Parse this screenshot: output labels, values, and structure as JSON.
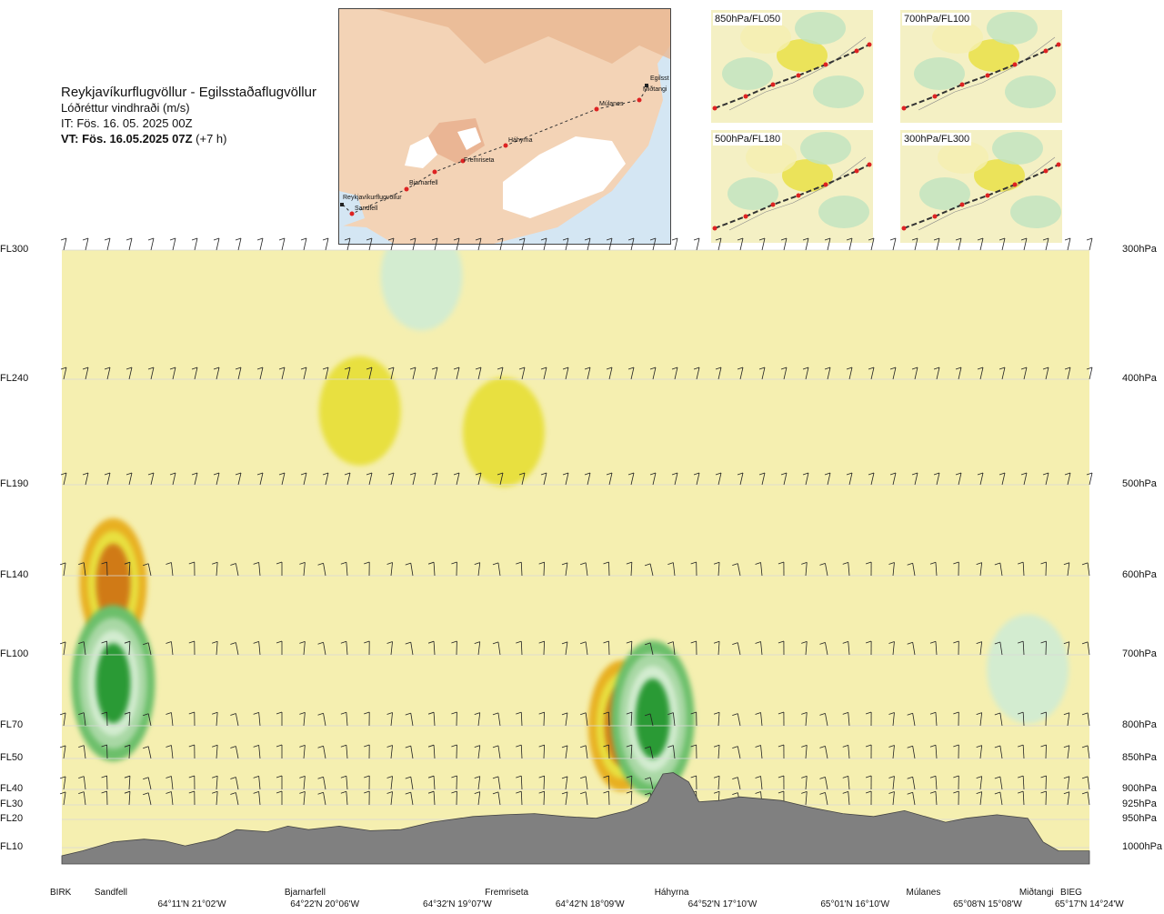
{
  "title": {
    "route": "Reykjavíkurflugvöllur - Egilsstaðaflugvöllur",
    "parameter": "Lóðréttur vindhraði (m/s)",
    "issue": "IT: Fös. 16. 05. 2025 00Z",
    "valid": "VT: Fös. 16.05.2025 07Z",
    "valid_offset": "(+7 h)"
  },
  "map": {
    "route_points": [
      "Reykjavíkurflugvöllur",
      "Sandfell",
      "Bjarnarfell",
      "Fremriseta",
      "Háhyrna",
      "Múlanes",
      "Miðtangi",
      "Egilsst"
    ]
  },
  "thumbnails": [
    {
      "label": "850hPa/FL050"
    },
    {
      "label": "700hPa/FL100"
    },
    {
      "label": "500hPa/FL180"
    },
    {
      "label": "300hPa/FL300"
    }
  ],
  "colors": {
    "pale_yellow": "#f5efb0",
    "yellow": "#e8e040",
    "gold": "#e8b020",
    "orange": "#d07a18",
    "pale_green": "#d3ecd0",
    "light_green": "#a9d8a5",
    "mid_green": "#6cbf6a",
    "dark_green": "#2a9a36",
    "terrain": "#808080"
  },
  "chart_data": {
    "type": "cross-section",
    "title": "Lóðréttur vindhraði (m/s)",
    "left_axis_labels": [
      {
        "label": "FL300",
        "pressure_hpa": 300
      },
      {
        "label": "FL240",
        "pressure_hpa": 400
      },
      {
        "label": "FL190",
        "pressure_hpa": 500
      },
      {
        "label": "FL140",
        "pressure_hpa": 600
      },
      {
        "label": "FL100",
        "pressure_hpa": 700
      },
      {
        "label": "FL70",
        "pressure_hpa": 800
      },
      {
        "label": "FL50",
        "pressure_hpa": 850
      },
      {
        "label": "FL40",
        "pressure_hpa": 900
      },
      {
        "label": "FL30",
        "pressure_hpa": 925
      },
      {
        "label": "FL20",
        "pressure_hpa": 950
      },
      {
        "label": "FL10",
        "pressure_hpa": 1000
      }
    ],
    "right_axis_labels": [
      "300hPa",
      "400hPa",
      "500hPa",
      "600hPa",
      "700hPa",
      "800hPa",
      "850hPa",
      "900hPa",
      "925hPa",
      "950hPa",
      "1000hPa"
    ],
    "pressure_levels": [
      300,
      400,
      500,
      600,
      700,
      800,
      850,
      900,
      925,
      950,
      1000
    ],
    "waypoints": [
      {
        "name": "BIRK",
        "distance": 0.0
      },
      {
        "name": "Sandfell",
        "distance": 0.045
      },
      {
        "name": "Bjarnarfell",
        "distance": 0.23
      },
      {
        "name": "Fremriseta",
        "distance": 0.425
      },
      {
        "name": "Háhyrna",
        "distance": 0.59
      },
      {
        "name": "Múlanes",
        "distance": 0.835
      },
      {
        "name": "Miðtangi",
        "distance": 0.945
      },
      {
        "name": "BIEG",
        "distance": 0.985
      }
    ],
    "coordinates": [
      {
        "label": "64°11'N 21°02'W",
        "distance": 0.127
      },
      {
        "label": "64°22'N 20°06'W",
        "distance": 0.256
      },
      {
        "label": "64°32'N 19°07'W",
        "distance": 0.385
      },
      {
        "label": "64°42'N 18°09'W",
        "distance": 0.514
      },
      {
        "label": "64°52'N 17°10'W",
        "distance": 0.643
      },
      {
        "label": "65°01'N 16°10'W",
        "distance": 0.772
      },
      {
        "label": "65°08'N 15°08'W",
        "distance": 0.901
      },
      {
        "label": "65°17'N 14°24'W",
        "distance": 1.0
      }
    ],
    "terrain_profile_hpa": [
      [
        0.0,
        1005
      ],
      [
        0.02,
        1002
      ],
      [
        0.05,
        990
      ],
      [
        0.08,
        985
      ],
      [
        0.1,
        988
      ],
      [
        0.12,
        997
      ],
      [
        0.15,
        985
      ],
      [
        0.17,
        968
      ],
      [
        0.2,
        972
      ],
      [
        0.22,
        962
      ],
      [
        0.24,
        968
      ],
      [
        0.27,
        962
      ],
      [
        0.3,
        970
      ],
      [
        0.33,
        968
      ],
      [
        0.36,
        955
      ],
      [
        0.4,
        945
      ],
      [
        0.43,
        942
      ],
      [
        0.46,
        940
      ],
      [
        0.49,
        945
      ],
      [
        0.52,
        948
      ],
      [
        0.55,
        935
      ],
      [
        0.57,
        920
      ],
      [
        0.585,
        875
      ],
      [
        0.595,
        873
      ],
      [
        0.61,
        888
      ],
      [
        0.62,
        920
      ],
      [
        0.64,
        918
      ],
      [
        0.66,
        912
      ],
      [
        0.7,
        918
      ],
      [
        0.73,
        930
      ],
      [
        0.76,
        940
      ],
      [
        0.79,
        945
      ],
      [
        0.82,
        935
      ],
      [
        0.84,
        945
      ],
      [
        0.86,
        955
      ],
      [
        0.88,
        948
      ],
      [
        0.91,
        942
      ],
      [
        0.94,
        948
      ],
      [
        0.955,
        990
      ],
      [
        0.97,
        1002
      ],
      [
        1.0,
        1002
      ]
    ],
    "features": [
      {
        "shade": "orange",
        "distance": 0.05,
        "pressure_hpa": 610
      },
      {
        "shade": "dark_green",
        "distance": 0.05,
        "pressure_hpa": 740
      },
      {
        "shade": "orange",
        "distance": 0.545,
        "pressure_hpa": 800
      },
      {
        "shade": "dark_green",
        "distance": 0.575,
        "pressure_hpa": 790
      },
      {
        "shade": "yellow",
        "distance": 0.29,
        "pressure_hpa": 430
      },
      {
        "shade": "yellow",
        "distance": 0.43,
        "pressure_hpa": 450
      },
      {
        "shade": "pale_green",
        "distance": 0.35,
        "pressure_hpa": 320
      },
      {
        "shade": "pale_green",
        "distance": 0.94,
        "pressure_hpa": 720
      }
    ]
  }
}
